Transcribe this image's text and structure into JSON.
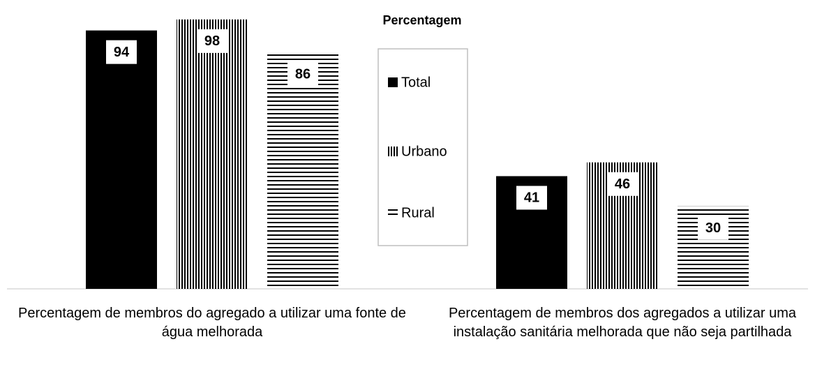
{
  "chart_data": {
    "type": "bar",
    "title": "Percentagem",
    "categories": [
      "Percentagem de membros do agregado a utilizar uma fonte de água melhorada",
      "Percentagem de membros dos agregados a utilizar uma instalação sanitária melhorada que não seja partilhada"
    ],
    "series": [
      {
        "name": "Total",
        "color": "#000000",
        "hatch": "solid",
        "values": [
          94,
          41
        ]
      },
      {
        "name": "Urbano",
        "color": "#000000",
        "hatch": "vertical",
        "values": [
          98,
          46
        ]
      },
      {
        "name": "Rural",
        "color": "#000000",
        "hatch": "horizontal",
        "values": [
          86,
          30
        ]
      }
    ],
    "ylim": [
      0,
      100
    ],
    "legend": "center"
  }
}
